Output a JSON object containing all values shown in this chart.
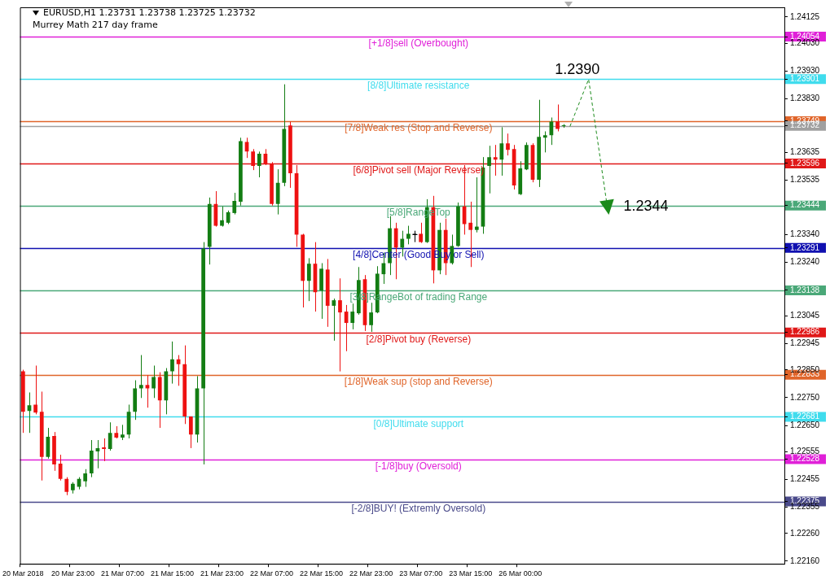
{
  "chart_data": {
    "type": "candlestick",
    "title": "EURUSD,H1  1.23731 1.23738 1.23725 1.23732",
    "subtitle": "Murrey Math 217 day frame",
    "categories": [
      "20 Mar 2018",
      null,
      null,
      null,
      null,
      null,
      null,
      null,
      "20 Mar 23:00",
      null,
      null,
      null,
      null,
      null,
      null,
      null,
      "21 Mar 07:00",
      null,
      null,
      null,
      null,
      null,
      null,
      null,
      "21 Mar 15:00",
      null,
      null,
      null,
      null,
      null,
      null,
      null,
      "21 Mar 23:00",
      null,
      null,
      null,
      null,
      null,
      null,
      null,
      "22 Mar 07:00",
      null,
      null,
      null,
      null,
      null,
      null,
      null,
      "22 Mar 15:00",
      null,
      null,
      null,
      null,
      null,
      null,
      null,
      "22 Mar 23:00",
      null,
      null,
      null,
      null,
      null,
      null,
      null,
      "23 Mar 07:00",
      null,
      null,
      null,
      null,
      null,
      null,
      null,
      "23 Mar 15:00",
      null,
      null,
      null,
      null,
      null,
      null,
      null,
      "26 Mar 00:00",
      null,
      null,
      null,
      null,
      null,
      null,
      null,
      null,
      null,
      null,
      null,
      null,
      null,
      null,
      null,
      null,
      null,
      null,
      null,
      null,
      null,
      null,
      null,
      null,
      null,
      null,
      null,
      null,
      null,
      null,
      null,
      null,
      null,
      null,
      null,
      null,
      null,
      null,
      null,
      null,
      null,
      null
    ],
    "ohlc": [
      [
        1.22845,
        1.22851,
        1.22623,
        1.22699
      ],
      [
        1.22702,
        1.22769,
        1.22623,
        1.22723
      ],
      [
        1.22725,
        1.22866,
        1.2269,
        1.22696
      ],
      [
        1.22699,
        1.22772,
        1.22451,
        1.22536
      ],
      [
        1.22536,
        1.22641,
        1.2253,
        1.22609
      ],
      [
        1.22612,
        1.22626,
        1.22486,
        1.22509
      ],
      [
        1.22512,
        1.22544,
        1.22451,
        1.22457
      ],
      [
        1.22457,
        1.22463,
        1.22398,
        1.2241
      ],
      [
        1.22416,
        1.22445,
        1.22404,
        1.22439
      ],
      [
        1.22428,
        1.22463,
        1.22419,
        1.22457
      ],
      [
        1.22448,
        1.22492,
        1.22428,
        1.22477
      ],
      [
        1.22477,
        1.22597,
        1.22463,
        1.22559
      ],
      [
        1.22556,
        1.22597,
        1.22495,
        1.22568
      ],
      [
        1.22571,
        1.22603,
        1.22521,
        1.22565
      ],
      [
        1.22565,
        1.22661,
        1.22559,
        1.22623
      ],
      [
        1.22623,
        1.22647,
        1.22603,
        1.22606
      ],
      [
        1.22606,
        1.22652,
        1.22597,
        1.22617
      ],
      [
        1.22617,
        1.22725,
        1.22603,
        1.22699
      ],
      [
        1.22699,
        1.22813,
        1.2267,
        1.22784
      ],
      [
        1.22784,
        1.22904,
        1.22749,
        1.22796
      ],
      [
        1.22796,
        1.22831,
        1.22714,
        1.22784
      ],
      [
        1.22784,
        1.22866,
        1.22749,
        1.22825
      ],
      [
        1.22825,
        1.22842,
        1.22641,
        1.2274
      ],
      [
        1.2274,
        1.22857,
        1.2269,
        1.22845
      ],
      [
        1.22845,
        1.22953,
        1.22801,
        1.22889
      ],
      [
        1.22889,
        1.22904,
        1.22793,
        1.22871
      ],
      [
        1.22871,
        1.22939,
        1.22655,
        1.22682
      ],
      [
        1.22682,
        1.22682,
        1.22568,
        1.22617
      ],
      [
        1.22617,
        1.22828,
        1.22588,
        1.22784
      ],
      [
        1.22784,
        1.23312,
        1.22509,
        1.23289
      ],
      [
        1.23295,
        1.23473,
        1.23231,
        1.2345
      ],
      [
        1.2345,
        1.23496,
        1.23368,
        1.23371
      ],
      [
        1.23371,
        1.23441,
        1.23368,
        1.23391
      ],
      [
        1.23382,
        1.23426,
        1.23377,
        1.2342
      ],
      [
        1.23417,
        1.2349,
        1.23412,
        1.23461
      ],
      [
        1.23458,
        1.23689,
        1.23444,
        1.23677
      ],
      [
        1.23674,
        1.23689,
        1.23616,
        1.23639
      ],
      [
        1.23639,
        1.23648,
        1.23572,
        1.23587
      ],
      [
        1.23587,
        1.23639,
        1.23546,
        1.23631
      ],
      [
        1.23631,
        1.23648,
        1.2359,
        1.23596
      ],
      [
        1.23596,
        1.23601,
        1.23444,
        1.2345
      ],
      [
        1.2345,
        1.23575,
        1.23412,
        1.23526
      ],
      [
        1.23526,
        1.23882,
        1.23514,
        1.23721
      ],
      [
        1.23733,
        1.23747,
        1.23508,
        1.23561
      ],
      [
        1.23561,
        1.2359,
        1.23295,
        1.23339
      ],
      [
        1.23339,
        1.23342,
        1.23076,
        1.23172
      ],
      [
        1.23172,
        1.23254,
        1.23099,
        1.23234
      ],
      [
        1.23234,
        1.23312,
        1.23061,
        1.23131
      ],
      [
        1.23137,
        1.23236,
        1.23035,
        1.23216
      ],
      [
        1.23213,
        1.23251,
        1.23006,
        1.23082
      ],
      [
        1.23082,
        1.23108,
        1.22956,
        1.23102
      ],
      [
        1.23102,
        1.23181,
        1.22845,
        1.23058
      ],
      [
        1.23061,
        1.23085,
        1.22918,
        1.2302
      ],
      [
        1.2302,
        1.2309,
        1.22997,
        1.23061
      ],
      [
        1.23055,
        1.23222,
        1.2305,
        1.23175
      ],
      [
        1.23178,
        1.23193,
        1.22991,
        1.23012
      ],
      [
        1.23012,
        1.23093,
        1.22988,
        1.23058
      ],
      [
        1.23058,
        1.23225,
        1.23055,
        1.23198
      ],
      [
        1.23196,
        1.23274,
        1.23161,
        1.23236
      ],
      [
        1.23236,
        1.23406,
        1.23193,
        1.23362
      ],
      [
        1.23362,
        1.23382,
        1.23178,
        1.23292
      ],
      [
        1.23292,
        1.23353,
        1.2326,
        1.23324
      ],
      [
        1.23324,
        1.23371,
        1.23304,
        1.23342
      ],
      [
        1.23339,
        1.23353,
        1.23312,
        1.23339
      ],
      [
        1.23342,
        1.23382,
        1.23309,
        1.23312
      ],
      [
        1.23312,
        1.23467,
        1.23309,
        1.23438
      ],
      [
        1.23438,
        1.23479,
        1.23163,
        1.2321
      ],
      [
        1.2321,
        1.23382,
        1.23196,
        1.23356
      ],
      [
        1.23356,
        1.23397,
        1.23193,
        1.23236
      ],
      [
        1.23236,
        1.23339,
        1.23231,
        1.23298
      ],
      [
        1.23298,
        1.23455,
        1.23295,
        1.23441
      ],
      [
        1.23441,
        1.2359,
        1.23339,
        1.23377
      ],
      [
        1.23382,
        1.23458,
        1.23222,
        1.23356
      ],
      [
        1.23356,
        1.23546,
        1.23347,
        1.23368
      ],
      [
        1.23368,
        1.23619,
        1.23342,
        1.23581
      ],
      [
        1.23587,
        1.2366,
        1.23488,
        1.23619
      ],
      [
        1.23619,
        1.23663,
        1.23552,
        1.2361
      ],
      [
        1.2361,
        1.23727,
        1.23552,
        1.23669
      ],
      [
        1.23669,
        1.23704,
        1.23625,
        1.23645
      ],
      [
        1.23648,
        1.23663,
        1.23502,
        1.23517
      ],
      [
        1.23485,
        1.23604,
        1.23482,
        1.23578
      ],
      [
        1.23575,
        1.23672,
        1.23572,
        1.23663
      ],
      [
        1.23663,
        1.23669,
        1.23528,
        1.23537
      ],
      [
        1.23537,
        1.23826,
        1.23511,
        1.23692
      ],
      [
        1.23689,
        1.23712,
        1.23636,
        1.23698
      ],
      [
        1.23698,
        1.23762,
        1.23663,
        1.23747
      ],
      [
        1.23747,
        1.23809,
        1.23712,
        1.23721
      ],
      [
        1.23731,
        1.23738,
        1.23725,
        1.23732
      ],
      null,
      null,
      null,
      null,
      null,
      null,
      null,
      null,
      null,
      null,
      null,
      null,
      null,
      null,
      null,
      null,
      null,
      null,
      null,
      null,
      null,
      null,
      null,
      null,
      null,
      null,
      null,
      null,
      null,
      null,
      null,
      null,
      null,
      null,
      null
    ],
    "colors": [
      "#ee1111",
      "#137d13",
      "#ee1111",
      "#ee1111",
      "#137d13",
      "#ee1111",
      "#ee1111",
      "#ee1111",
      "#137d13",
      "#137d13",
      "#137d13",
      "#137d13",
      "#137d13",
      "#ee1111",
      "#137d13",
      "#ee1111",
      "#137d13",
      "#137d13",
      "#137d13",
      "#137d13",
      "#ee1111",
      "#137d13",
      "#ee1111",
      "#137d13",
      "#137d13",
      "#ee1111",
      "#ee1111",
      "#ee1111",
      "#137d13",
      "#137d13",
      "#137d13",
      "#ee1111",
      "#137d13",
      "#137d13",
      "#137d13",
      "#137d13",
      "#ee1111",
      "#ee1111",
      "#137d13",
      "#ee1111",
      "#ee1111",
      "#137d13",
      "#137d13",
      "#ee1111",
      "#ee1111",
      "#ee1111",
      "#137d13",
      "#ee1111",
      "#137d13",
      "#ee1111",
      "#137d13",
      "#ee1111",
      "#ee1111",
      "#137d13",
      "#137d13",
      "#ee1111",
      "#137d13",
      "#137d13",
      "#137d13",
      "#137d13",
      "#ee1111",
      "#137d13",
      "#137d13",
      "#000000",
      "#ee1111",
      "#137d13",
      "#ee1111",
      "#137d13",
      "#ee1111",
      "#137d13",
      "#137d13",
      "#ee1111",
      "#ee1111",
      "#137d13",
      "#137d13",
      "#137d13",
      "#ee1111",
      "#137d13",
      "#ee1111",
      "#ee1111",
      "#137d13",
      "#137d13",
      "#ee1111",
      "#137d13",
      "#137d13",
      "#137d13",
      "#ee1111",
      "#137d13",
      null,
      null,
      null,
      null,
      null,
      null,
      null,
      null,
      null,
      null,
      null,
      null,
      null,
      null,
      null,
      null,
      null,
      null,
      null,
      null,
      null,
      null,
      null,
      null,
      null,
      null,
      null,
      null,
      null,
      null,
      null,
      null,
      null,
      null,
      null
    ],
    "series": [
      {
        "type": "line",
        "color": "#1a8a1a",
        "line_style": "dashed",
        "values": [
          null,
          null,
          null,
          null,
          null,
          null,
          null,
          null,
          null,
          null,
          null,
          null,
          null,
          null,
          null,
          null,
          null,
          null,
          null,
          null,
          null,
          null,
          null,
          null,
          null,
          null,
          null,
          null,
          null,
          null,
          null,
          null,
          null,
          null,
          null,
          null,
          null,
          null,
          null,
          null,
          null,
          null,
          null,
          null,
          null,
          null,
          null,
          null,
          null,
          null,
          null,
          null,
          null,
          null,
          null,
          null,
          null,
          null,
          null,
          null,
          null,
          null,
          null,
          null,
          null,
          null,
          null,
          null,
          null,
          null,
          null,
          null,
          null,
          null,
          null,
          null,
          null,
          null,
          null,
          null,
          null,
          null,
          null,
          null,
          null,
          null,
          null,
          null,
          1.2373,
          null,
          null,
          1.239,
          null,
          null,
          1.2344,
          null,
          null,
          null,
          null,
          null,
          null,
          null,
          null,
          null,
          null,
          null,
          null,
          null,
          null,
          null,
          null,
          null,
          null,
          null,
          null,
          null,
          null,
          null,
          null,
          null,
          null,
          null,
          null
        ]
      }
    ],
    "ref_lines": [
      {
        "axis": "y",
        "value": 1.24054,
        "label": "[+1/8]sell (Overbought)",
        "color": "#e020d8"
      },
      {
        "axis": "y",
        "value": 1.23901,
        "label": "[8/8]Ultimate resistance",
        "color": "#40dced"
      },
      {
        "axis": "y",
        "value": 1.23749,
        "label": "[7/8]Weak res (Stop and Reverse)",
        "color": "#e0652a"
      },
      {
        "axis": "y",
        "value": 1.23732,
        "color": "#a0a0a0"
      },
      {
        "axis": "y",
        "value": 1.23596,
        "label": "[6/8]Pivot sell (Major Reverse)",
        "color": "#e01818"
      },
      {
        "axis": "y",
        "value": 1.23444,
        "label": "[5/8]RangeTop",
        "color": "#4aa878"
      },
      {
        "axis": "y",
        "value": 1.23291,
        "label": "[4/8]Center (Good Buy or Sell)",
        "color": "#1010b0"
      },
      {
        "axis": "y",
        "value": 1.23138,
        "label": "[3/8]RangeBot of trading Range",
        "color": "#4aa878"
      },
      {
        "axis": "y",
        "value": 1.22986,
        "label": "[2/8]Pivot buy (Reverse)",
        "color": "#e01818"
      },
      {
        "axis": "y",
        "value": 1.22833,
        "label": "[1/8]Weak sup (stop and Reverse)",
        "color": "#e0652a"
      },
      {
        "axis": "y",
        "value": 1.22681,
        "label": "[0/8]Ultimate support",
        "color": "#40dced"
      },
      {
        "axis": "y",
        "value": 1.22528,
        "label": "[-1/8]buy (Oversold)",
        "color": "#e020d8"
      },
      {
        "axis": "y",
        "value": 1.22375,
        "label": "[-2/8]BUY! (Extremly Oversold)",
        "color": "#4a4a8a"
      }
    ],
    "annotations": [
      {
        "text": "1.2390",
        "y": 1.239
      },
      {
        "text": "1.2344",
        "y": 1.2344
      }
    ],
    "ylim": [
      1.2215,
      1.2416
    ],
    "yticks": [
      1.24125,
      {
        "value": 1.24054,
        "label": "1.24054"
      },
      {
        "value": 1.23901,
        "label": "1.23901"
      },
      {
        "value": 1.23749,
        "label": "1.23749"
      },
      {
        "value": 1.23732,
        "label": "1.23732"
      },
      {
        "value": 1.23596,
        "label": "1.23596"
      },
      {
        "value": 1.23444,
        "label": "1.23444"
      },
      {
        "value": 1.23291,
        "label": "1.23291"
      },
      {
        "value": 1.23138,
        "label": "1.23138"
      },
      {
        "value": 1.22986,
        "label": "1.22986"
      },
      {
        "value": 1.22833,
        "label": "1.22833"
      },
      {
        "value": 1.22681,
        "label": "1.22681"
      },
      {
        "value": 1.22528,
        "label": "1.22528"
      },
      {
        "value": 1.22375,
        "label": "1.22375"
      },
      {
        "value": 1.2403,
        "label": "1.24030"
      },
      {
        "value": 1.2393,
        "label": "1.23930"
      },
      {
        "value": 1.2383,
        "label": "1.23830"
      },
      1.23635,
      1.23535,
      {
        "value": 1.2334,
        "label": "1.23340"
      },
      {
        "value": 1.2324,
        "label": "1.23240"
      },
      1.23045,
      1.22945,
      {
        "value": 1.2285,
        "label": "1.22850"
      },
      {
        "value": 1.2275,
        "label": "1.22750"
      },
      {
        "value": 1.2265,
        "label": "1.22650"
      },
      1.22555,
      1.22455,
      1.22355,
      {
        "value": 1.2226,
        "label": "1.22260"
      },
      {
        "value": 1.2216,
        "label": "1.22160"
      }
    ],
    "grid": false,
    "legend": false,
    "marker": "none"
  }
}
